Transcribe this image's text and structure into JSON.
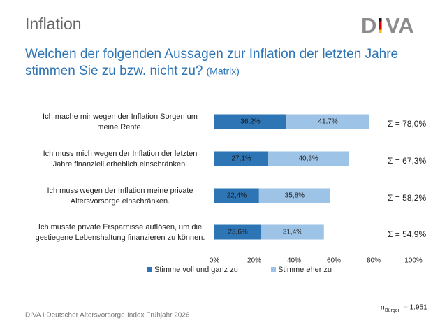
{
  "header": {
    "title": "Inflation",
    "logo": {
      "left": "D",
      "mid": "I",
      "right": "VA"
    }
  },
  "footer": {
    "source": "DIVA I Deutscher Altersvorsorge-Index Frühjahr 2026",
    "n_label": "n",
    "n_sub": "Bürger",
    "n_value": "= 1.951"
  },
  "chart_data": {
    "type": "stacked-barh",
    "title": [
      "Welchen der folgenden Aussagen zur Inflation der letzten Jahre",
      "stimmen Sie zu bzw. nicht zu?"
    ],
    "subtitle": "(Matrix)",
    "categories": [
      [
        "Ich mache mir wegen der Inflation Sorgen um",
        "meine Rente."
      ],
      [
        "Ich muss mich wegen der Inflation der letzten",
        "Jahre finanziell erheblich einschränken."
      ],
      [
        "Ich muss wegen der Inflation meine private",
        "Altersvorsorge einschränken."
      ],
      [
        "Ich musste private Ersparnisse auflösen, um die",
        "gestiegene Lebenshaltung finanzieren zu können."
      ]
    ],
    "series": [
      {
        "name": "Stimme voll und ganz zu",
        "color": "#2e75b6",
        "values": [
          36.2,
          27.1,
          22.4,
          23.6
        ],
        "value_labels": [
          "36,2%",
          "27,1%",
          "22,4%",
          "23,6%"
        ]
      },
      {
        "name": "Stimme eher zu",
        "color": "#9dc3e6",
        "values": [
          41.7,
          40.3,
          35.8,
          31.4
        ],
        "value_labels": [
          "41,7%",
          "40,3%",
          "35,8%",
          "31,4%"
        ]
      }
    ],
    "sum_labels": [
      "Σ = 78,0%",
      "Σ =  67,3%",
      "Σ = 58,2%",
      "Σ = 54,9%"
    ],
    "xlim": [
      0,
      100
    ],
    "xticks": [
      {
        "value": 0,
        "label": "0%"
      },
      {
        "value": 20,
        "label": "20%"
      },
      {
        "value": 40,
        "label": "40%"
      },
      {
        "value": 60,
        "label": "60%"
      },
      {
        "value": 80,
        "label": "80%"
      },
      {
        "value": 100,
        "label": "100%"
      }
    ],
    "grid": false,
    "legend": "bottom"
  }
}
